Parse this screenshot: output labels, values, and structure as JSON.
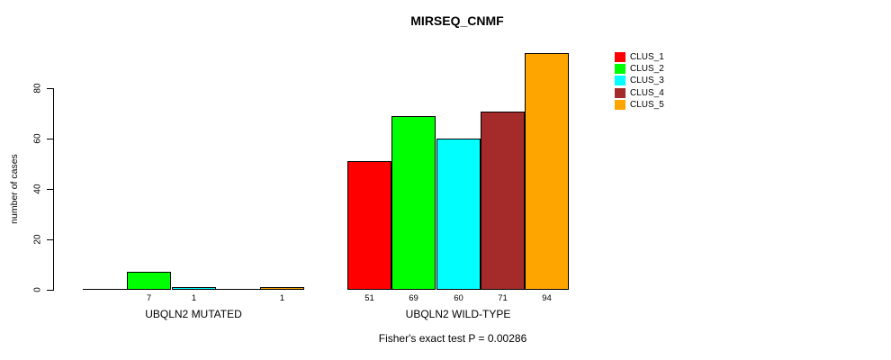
{
  "title": "MIRSEQ_CNMF",
  "footer": "Fisher's exact test P = 0.00286",
  "chart_data": {
    "type": "bar",
    "title": "MIRSEQ_CNMF",
    "xlabel": "",
    "ylabel": "number of cases",
    "ylim": [
      0,
      94
    ],
    "yticks": [
      0,
      20,
      40,
      60,
      80
    ],
    "grid": false,
    "legend_position": "right-outside",
    "annotation": "Fisher's exact test P = 0.00286",
    "categories": [
      "UBQLN2 MUTATED",
      "UBQLN2 WILD-TYPE"
    ],
    "series": [
      {
        "name": "CLUS_1",
        "color": "#FF0000",
        "values": [
          0,
          51
        ]
      },
      {
        "name": "CLUS_2",
        "color": "#00FF00",
        "values": [
          7,
          69
        ]
      },
      {
        "name": "CLUS_3",
        "color": "#00FFFF",
        "values": [
          1,
          60
        ]
      },
      {
        "name": "CLUS_4",
        "color": "#A52A2A",
        "values": [
          0,
          71
        ]
      },
      {
        "name": "CLUS_5",
        "color": "#FFA500",
        "values": [
          1,
          94
        ]
      }
    ],
    "bar_labels_shown_for_zero": false
  }
}
